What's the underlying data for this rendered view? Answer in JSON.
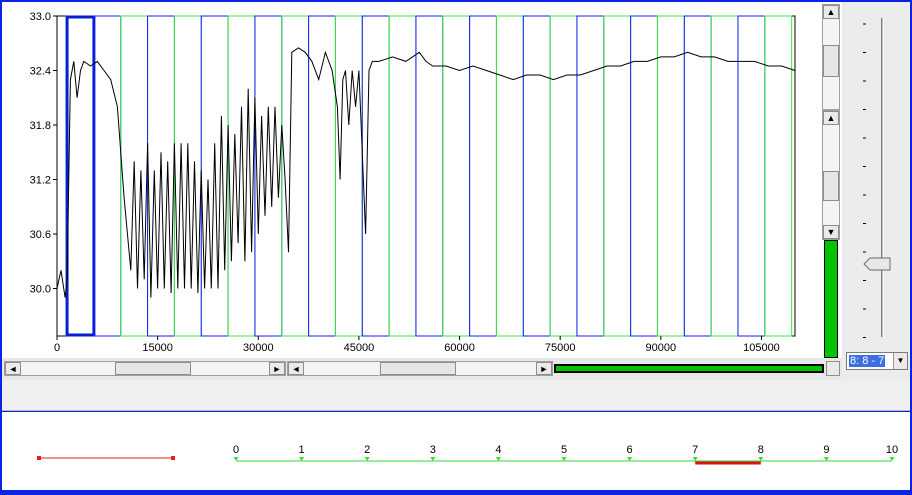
{
  "chart_data": {
    "type": "line",
    "y_ticks": [
      "33.0",
      "32.4",
      "31.8",
      "31.2",
      "30.6",
      "30.0"
    ],
    "x_ticks": [
      "0",
      "15000",
      "30000",
      "45000",
      "60000",
      "75000",
      "90000",
      "105000"
    ],
    "xlim": [
      0,
      110000
    ],
    "ylim": [
      29.6,
      33.0
    ],
    "points": [
      [
        0,
        30.0
      ],
      [
        600,
        30.2
      ],
      [
        1200,
        29.9
      ],
      [
        1500,
        30.1
      ],
      [
        2000,
        32.3
      ],
      [
        2500,
        32.5
      ],
      [
        3000,
        32.1
      ],
      [
        3500,
        32.4
      ],
      [
        4000,
        32.5
      ],
      [
        5000,
        32.45
      ],
      [
        6000,
        32.5
      ],
      [
        7000,
        32.4
      ],
      [
        8000,
        32.3
      ],
      [
        9000,
        32.0
      ],
      [
        10000,
        31.0
      ],
      [
        11000,
        30.2
      ],
      [
        11500,
        31.4
      ],
      [
        12000,
        30.0
      ],
      [
        12500,
        31.3
      ],
      [
        13000,
        30.1
      ],
      [
        13500,
        31.6
      ],
      [
        14000,
        29.9
      ],
      [
        14500,
        31.3
      ],
      [
        15000,
        30.0
      ],
      [
        15500,
        31.5
      ],
      [
        16000,
        30.0
      ],
      [
        16500,
        31.4
      ],
      [
        17000,
        29.95
      ],
      [
        17500,
        31.6
      ],
      [
        18000,
        30.0
      ],
      [
        18500,
        31.6
      ],
      [
        19000,
        30.0
      ],
      [
        19500,
        31.6
      ],
      [
        20000,
        30.0
      ],
      [
        20500,
        31.4
      ],
      [
        21000,
        29.95
      ],
      [
        21500,
        31.3
      ],
      [
        22000,
        30.0
      ],
      [
        22500,
        31.2
      ],
      [
        23000,
        30.0
      ],
      [
        23500,
        31.6
      ],
      [
        24000,
        30.0
      ],
      [
        24500,
        31.9
      ],
      [
        25000,
        30.2
      ],
      [
        25500,
        31.8
      ],
      [
        26000,
        30.3
      ],
      [
        26500,
        31.7
      ],
      [
        27000,
        30.5
      ],
      [
        27500,
        32.0
      ],
      [
        28000,
        30.3
      ],
      [
        28500,
        32.2
      ],
      [
        29000,
        30.4
      ],
      [
        29500,
        32.1
      ],
      [
        30000,
        30.6
      ],
      [
        30500,
        31.9
      ],
      [
        31000,
        30.8
      ],
      [
        31500,
        32.0
      ],
      [
        32000,
        30.9
      ],
      [
        32500,
        32.0
      ],
      [
        33000,
        31.0
      ],
      [
        33500,
        31.8
      ],
      [
        34000,
        31.2
      ],
      [
        34500,
        30.4
      ],
      [
        35000,
        32.6
      ],
      [
        36000,
        32.65
      ],
      [
        37000,
        32.6
      ],
      [
        38000,
        32.5
      ],
      [
        39000,
        32.3
      ],
      [
        40000,
        32.6
      ],
      [
        41000,
        32.4
      ],
      [
        41800,
        32.0
      ],
      [
        42200,
        31.2
      ],
      [
        42600,
        32.3
      ],
      [
        43000,
        32.4
      ],
      [
        43500,
        31.8
      ],
      [
        44000,
        32.4
      ],
      [
        44500,
        32.0
      ],
      [
        45000,
        32.4
      ],
      [
        46000,
        30.6
      ],
      [
        46500,
        32.4
      ],
      [
        47000,
        32.5
      ],
      [
        48000,
        32.5
      ],
      [
        50000,
        32.55
      ],
      [
        52000,
        32.5
      ],
      [
        54000,
        32.6
      ],
      [
        55000,
        32.5
      ],
      [
        56000,
        32.45
      ],
      [
        58000,
        32.45
      ],
      [
        60000,
        32.4
      ],
      [
        62000,
        32.45
      ],
      [
        64000,
        32.4
      ],
      [
        66000,
        32.35
      ],
      [
        68000,
        32.3
      ],
      [
        70000,
        32.35
      ],
      [
        72000,
        32.35
      ],
      [
        74000,
        32.3
      ],
      [
        76000,
        32.35
      ],
      [
        78000,
        32.35
      ],
      [
        80000,
        32.4
      ],
      [
        82000,
        32.45
      ],
      [
        84000,
        32.45
      ],
      [
        86000,
        32.5
      ],
      [
        88000,
        32.5
      ],
      [
        90000,
        32.55
      ],
      [
        92000,
        32.55
      ],
      [
        94000,
        32.6
      ],
      [
        96000,
        32.55
      ],
      [
        98000,
        32.55
      ],
      [
        100000,
        32.5
      ],
      [
        102000,
        32.5
      ],
      [
        104000,
        32.5
      ],
      [
        106000,
        32.45
      ],
      [
        108000,
        32.45
      ],
      [
        110000,
        32.4
      ]
    ],
    "line_color": "#000000",
    "window_colors": {
      "blue": "#1a1aff",
      "green": "#33ee33",
      "selected": "#0022cc"
    },
    "windows": [
      {
        "start": 1500,
        "end": 5500,
        "color": "selected"
      },
      {
        "start": 5500,
        "end": 9500,
        "color": "blue"
      },
      {
        "start": 9500,
        "end": 13500,
        "color": "green"
      },
      {
        "start": 13500,
        "end": 17500,
        "color": "blue"
      },
      {
        "start": 17500,
        "end": 21500,
        "color": "green"
      },
      {
        "start": 21500,
        "end": 25500,
        "color": "blue"
      },
      {
        "start": 25500,
        "end": 29500,
        "color": "green"
      },
      {
        "start": 29500,
        "end": 33500,
        "color": "blue"
      },
      {
        "start": 33500,
        "end": 37500,
        "color": "green"
      },
      {
        "start": 37500,
        "end": 41500,
        "color": "blue"
      },
      {
        "start": 41500,
        "end": 45500,
        "color": "green"
      },
      {
        "start": 45500,
        "end": 49500,
        "color": "blue"
      },
      {
        "start": 49500,
        "end": 53500,
        "color": "green"
      },
      {
        "start": 53500,
        "end": 57500,
        "color": "blue"
      },
      {
        "start": 57500,
        "end": 61500,
        "color": "green"
      },
      {
        "start": 61500,
        "end": 65500,
        "color": "blue"
      },
      {
        "start": 65500,
        "end": 69500,
        "color": "green"
      },
      {
        "start": 69500,
        "end": 73500,
        "color": "blue"
      },
      {
        "start": 73500,
        "end": 77500,
        "color": "green"
      },
      {
        "start": 77500,
        "end": 81500,
        "color": "blue"
      },
      {
        "start": 81500,
        "end": 85500,
        "color": "green"
      },
      {
        "start": 85500,
        "end": 89500,
        "color": "blue"
      },
      {
        "start": 89500,
        "end": 93500,
        "color": "green"
      },
      {
        "start": 93500,
        "end": 97500,
        "color": "blue"
      },
      {
        "start": 97500,
        "end": 101500,
        "color": "green"
      },
      {
        "start": 101500,
        "end": 105500,
        "color": "blue"
      },
      {
        "start": 105500,
        "end": 109500,
        "color": "green"
      }
    ]
  },
  "scrollbars": {
    "up_arrow": "▲",
    "down_arrow": "▼",
    "left_arrow": "◄",
    "right_arrow": "►"
  },
  "combo": {
    "value": "8: 8 - 7",
    "arrow": "▼"
  },
  "legend_line_color": "#dd2222",
  "ruler": {
    "labels": [
      "0",
      "1",
      "2",
      "3",
      "4",
      "5",
      "6",
      "7",
      "8",
      "9",
      "10"
    ],
    "line_color": "#33dd33",
    "highlight_color": "#dd1111",
    "highlight_range": [
      7,
      8
    ]
  }
}
